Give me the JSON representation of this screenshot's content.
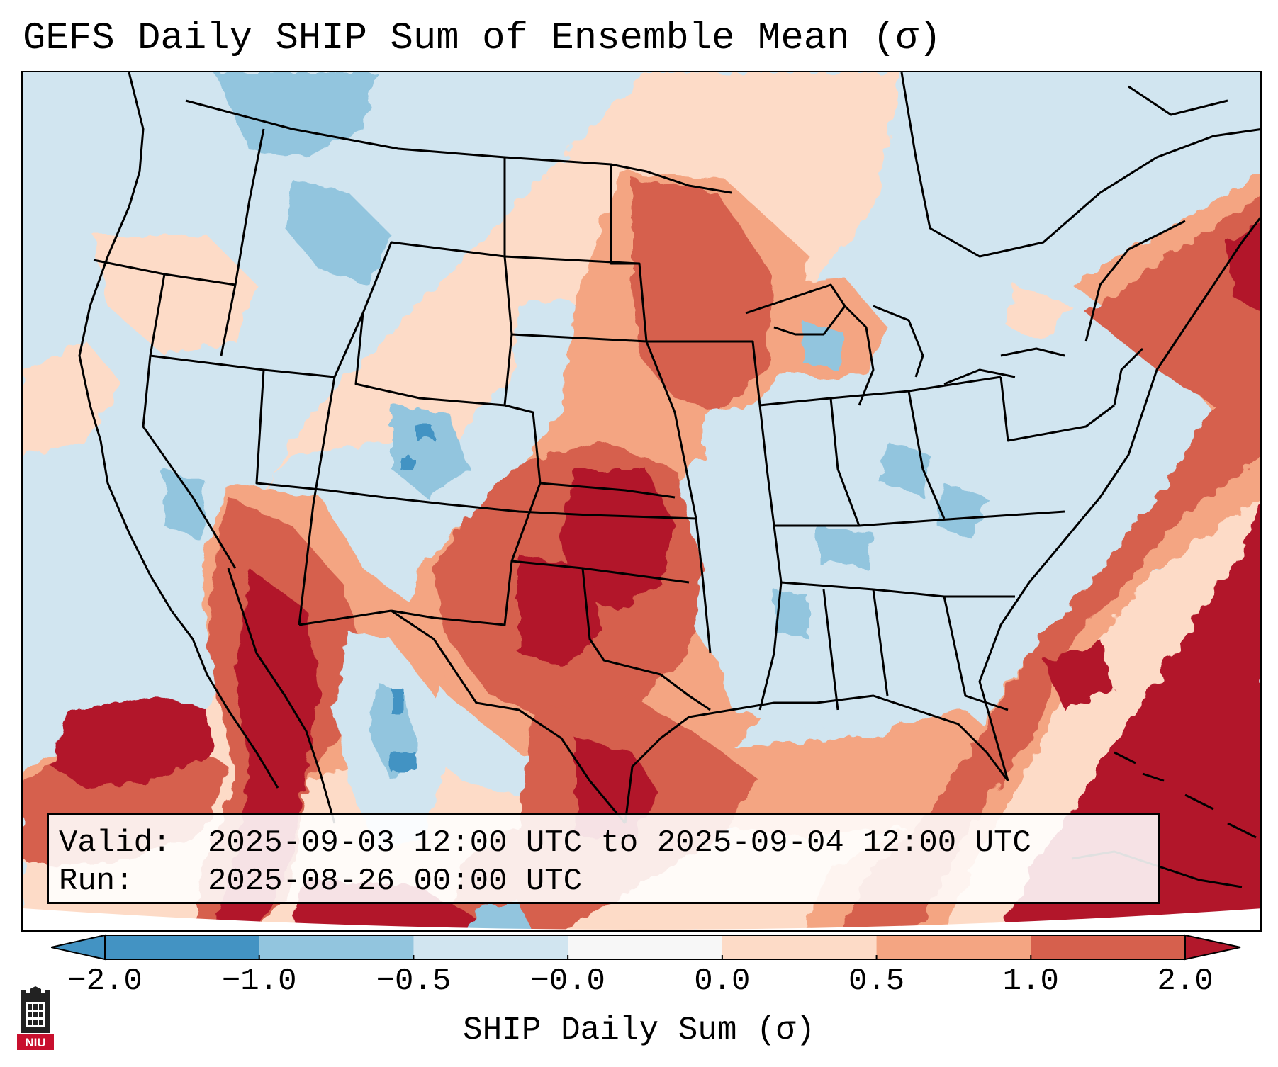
{
  "title": "GEFS Daily SHIP Sum of Ensemble Mean (σ)",
  "info": {
    "valid_label": "Valid:",
    "valid_value": "2025-09-03 12:00 UTC to 2025-09-04 12:00 UTC",
    "run_label": "Run:",
    "run_value": "2025-08-26 00:00 UTC"
  },
  "colorbar": {
    "label": "SHIP Daily Sum (σ)",
    "ticks": [
      "−2.0",
      "−1.0",
      "−0.5",
      "−0.0",
      "0.0",
      "0.5",
      "1.0",
      "2.0"
    ],
    "colors": [
      "#4393c3",
      "#92c5de",
      "#d1e5f0",
      "#f7f7f7",
      "#fddbc7",
      "#f4a582",
      "#d6604d",
      "#b2182b"
    ]
  },
  "legend_colors": {
    "strong_negative": "#4393c3",
    "negative": "#92c5de",
    "slight_negative": "#d1e5f0",
    "slight_positive": "#fddbc7",
    "positive": "#f4a582",
    "strong_positive": "#d6604d",
    "extreme_positive": "#b2182b"
  },
  "logo": {
    "text": "NIU",
    "color": "#c8102e"
  }
}
